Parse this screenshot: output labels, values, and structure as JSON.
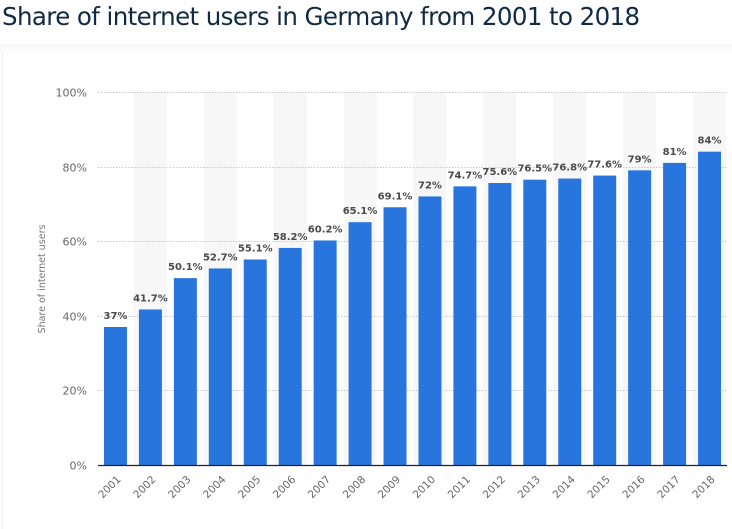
{
  "page": {
    "title": "Share of internet users in Germany from 2001 to 2018"
  },
  "colors": {
    "bar": "#2876dd",
    "band": "#f7f7f7",
    "grid": "#c8c8c8",
    "axis": "#222222",
    "title": "#0f2a44"
  },
  "chart_data": {
    "type": "bar",
    "title": "Share of internet users in Germany from 2001 to 2018",
    "xlabel": "",
    "ylabel": "Share of internet users",
    "ylim": [
      0,
      100
    ],
    "yticks": [
      0,
      20,
      40,
      60,
      80,
      100
    ],
    "ytick_labels": [
      "0%",
      "20%",
      "40%",
      "60%",
      "80%",
      "100%"
    ],
    "grid": true,
    "categories": [
      "2001",
      "2002",
      "2003",
      "2004",
      "2005",
      "2006",
      "2007",
      "2008",
      "2009",
      "2010",
      "2011",
      "2012",
      "2013",
      "2014",
      "2015",
      "2016",
      "2017",
      "2018"
    ],
    "values": [
      37,
      41.7,
      50.1,
      52.7,
      55.1,
      58.2,
      60.2,
      65.1,
      69.1,
      72,
      74.7,
      75.6,
      76.5,
      76.8,
      77.6,
      79,
      81,
      84
    ],
    "data_labels": [
      "37%",
      "41.7%",
      "50.1%",
      "52.7%",
      "55.1%",
      "58.2%",
      "60.2%",
      "65.1%",
      "69.1%",
      "72%",
      "74.7%",
      "75.6%",
      "76.5%",
      "76.8%",
      "77.6%",
      "79%",
      "81%",
      "84%"
    ]
  }
}
